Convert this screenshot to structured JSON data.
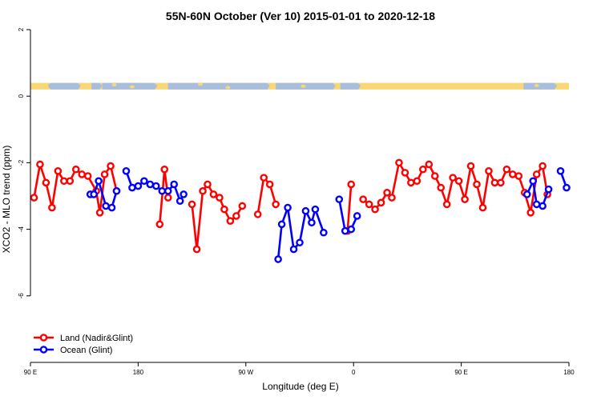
{
  "chart_data": {
    "type": "line",
    "title": "55N-60N October (Ver 10)   2015-01-01 to 2020-12-18",
    "xlabel": "Longitude (deg E)",
    "ylabel": "XCO2 - MLO trend (ppm)",
    "xlim": [
      90,
      540
    ],
    "ylim": [
      -8,
      2
    ],
    "xticks": [
      {
        "value": 90,
        "label": "90 E"
      },
      {
        "value": 180,
        "label": "180"
      },
      {
        "value": 270,
        "label": "90 W"
      },
      {
        "value": 360,
        "label": "0"
      },
      {
        "value": 450,
        "label": "90 E"
      },
      {
        "value": 540,
        "label": "180"
      }
    ],
    "yticks": [
      {
        "value": 2,
        "label": "2"
      },
      {
        "value": 0,
        "label": "0"
      },
      {
        "value": -2,
        "label": "-2"
      },
      {
        "value": -4,
        "label": "-4"
      },
      {
        "value": -6,
        "label": "-6"
      }
    ],
    "grid": false,
    "legend": "bottom-left",
    "land_sea_strip": {
      "y_range": [
        0.2,
        0.4
      ],
      "land_color": "#F9D777",
      "ocean_color": "#A8BEDC"
    },
    "series": [
      {
        "name": "Land (Nadir&Glint)",
        "color": "#FF0000",
        "segments": [
          [
            [
              93,
              -3.05
            ],
            [
              98,
              -2.05
            ],
            [
              103,
              -2.6
            ],
            [
              108,
              -3.35
            ],
            [
              113,
              -2.25
            ],
            [
              118,
              -2.55
            ],
            [
              123,
              -2.55
            ],
            [
              128,
              -2.2
            ],
            [
              133,
              -2.35
            ],
            [
              138,
              -2.4
            ],
            [
              145,
              -2.85
            ],
            [
              148,
              -3.5
            ],
            [
              152,
              -2.35
            ],
            [
              157,
              -2.1
            ],
            [
              162,
              -2.85
            ]
          ],
          [
            [
              198,
              -3.85
            ],
            [
              202,
              -2.2
            ],
            [
              205,
              -3.05
            ]
          ],
          [
            [
              225,
              -3.25
            ],
            [
              229,
              -4.6
            ],
            [
              234,
              -2.85
            ],
            [
              238,
              -2.65
            ],
            [
              243,
              -2.95
            ],
            [
              248,
              -3.05
            ],
            [
              252,
              -3.4
            ],
            [
              257,
              -3.75
            ],
            [
              262,
              -3.6
            ],
            [
              267,
              -3.3
            ]
          ],
          [
            [
              280,
              -3.55
            ],
            [
              285,
              -2.45
            ],
            [
              290,
              -2.65
            ],
            [
              295,
              -3.25
            ]
          ],
          [
            [
              355,
              -4.05
            ],
            [
              358,
              -2.65
            ]
          ],
          [
            [
              368,
              -3.1
            ],
            [
              373,
              -3.25
            ],
            [
              378,
              -3.4
            ],
            [
              383,
              -3.2
            ],
            [
              388,
              -2.9
            ],
            [
              392,
              -3.05
            ],
            [
              398,
              -2.0
            ],
            [
              403,
              -2.3
            ],
            [
              408,
              -2.6
            ],
            [
              413,
              -2.55
            ],
            [
              418,
              -2.2
            ],
            [
              423,
              -2.05
            ],
            [
              428,
              -2.4
            ],
            [
              433,
              -2.75
            ],
            [
              438,
              -3.25
            ],
            [
              443,
              -2.45
            ],
            [
              448,
              -2.55
            ],
            [
              453,
              -3.1
            ],
            [
              458,
              -2.1
            ],
            [
              463,
              -2.65
            ],
            [
              468,
              -3.35
            ],
            [
              473,
              -2.25
            ],
            [
              478,
              -2.6
            ],
            [
              483,
              -2.6
            ],
            [
              488,
              -2.2
            ],
            [
              493,
              -2.35
            ],
            [
              498,
              -2.4
            ],
            [
              503,
              -2.9
            ],
            [
              508,
              -3.5
            ],
            [
              513,
              -2.35
            ],
            [
              518,
              -2.1
            ],
            [
              522,
              -2.95
            ]
          ]
        ]
      },
      {
        "name": "Ocean (Glint)",
        "color": "#0000FF",
        "segments": [
          [
            [
              140,
              -2.95
            ],
            [
              143,
              -2.95
            ],
            [
              147,
              -2.55
            ],
            [
              153,
              -3.3
            ],
            [
              158,
              -3.35
            ],
            [
              162,
              -2.85
            ]
          ],
          [
            [
              170,
              -2.25
            ],
            [
              175,
              -2.75
            ],
            [
              180,
              -2.7
            ],
            [
              185,
              -2.55
            ],
            [
              190,
              -2.65
            ],
            [
              195,
              -2.7
            ],
            [
              200,
              -2.85
            ],
            [
              205,
              -2.85
            ],
            [
              210,
              -2.65
            ],
            [
              215,
              -3.15
            ],
            [
              218,
              -2.95
            ]
          ],
          [
            [
              297,
              -4.9
            ],
            [
              300,
              -3.85
            ],
            [
              305,
              -3.35
            ],
            [
              310,
              -4.6
            ],
            [
              315,
              -4.4
            ],
            [
              320,
              -3.45
            ],
            [
              325,
              -3.8
            ],
            [
              328,
              -3.4
            ],
            [
              335,
              -4.1
            ]
          ],
          [
            [
              348,
              -3.1
            ],
            [
              353,
              -4.05
            ],
            [
              358,
              -4.0
            ],
            [
              363,
              -3.6
            ]
          ],
          [
            [
              505,
              -2.95
            ],
            [
              510,
              -2.55
            ],
            [
              513,
              -3.25
            ],
            [
              518,
              -3.3
            ],
            [
              523,
              -2.8
            ]
          ],
          [
            [
              533,
              -2.25
            ],
            [
              538,
              -2.75
            ]
          ]
        ]
      }
    ]
  }
}
